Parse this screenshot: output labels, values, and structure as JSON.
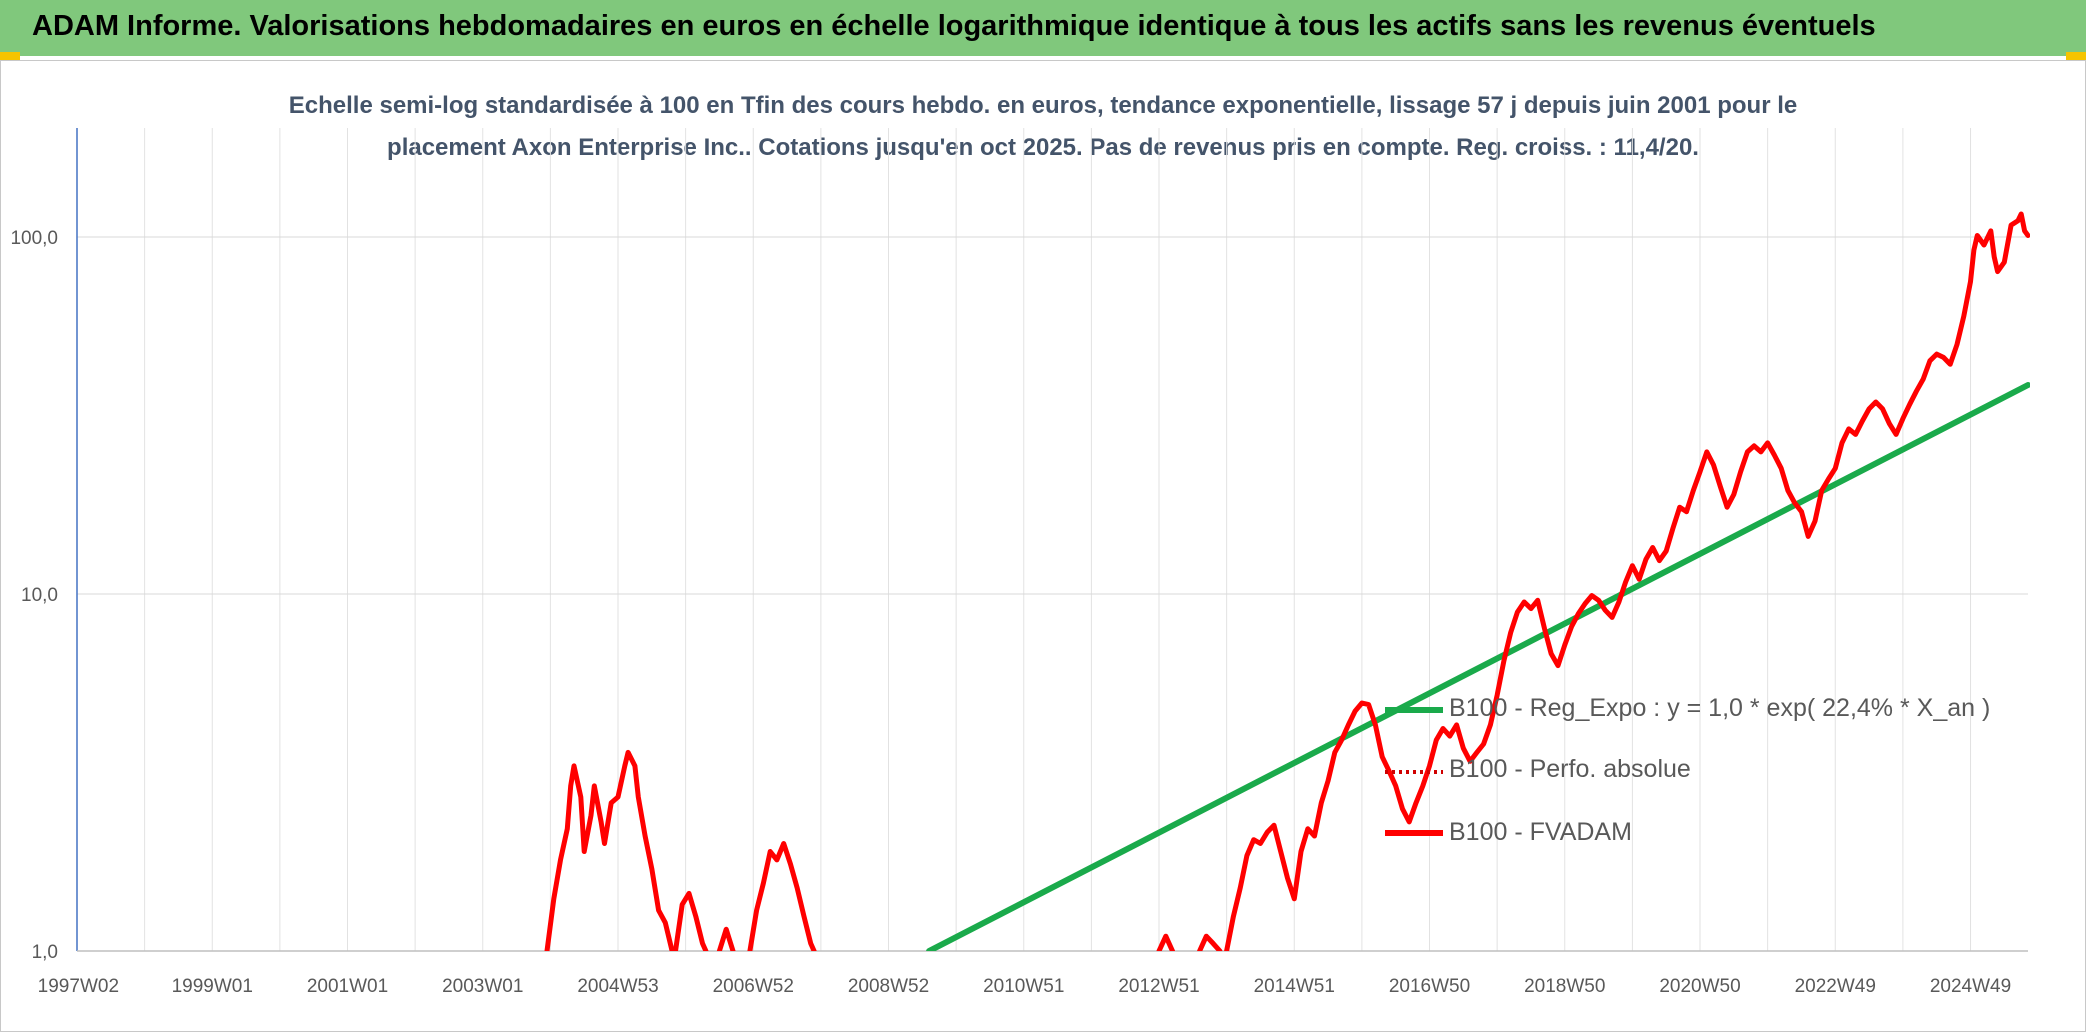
{
  "header": {
    "title": "ADAM Informe. Valorisations hebdomadaires en euros en échelle logarithmique identique à tous les actifs sans les revenus éventuels"
  },
  "chart_data": {
    "type": "line",
    "title_line1": "Echelle semi-log standardisée à 100 en Tfin des cours hebdo. en euros, tendance exponentielle, lissage 57 j depuis juin 2001 pour le",
    "title_line2": "placement Axon Enterprise Inc.. Cotations jusqu'en oct 2025. Pas de revenus pris en compte. Reg. croiss. : 11,4/20.",
    "y_scale": "log",
    "ylim": [
      1,
      180
    ],
    "xlim": [
      1997.0,
      2025.85
    ],
    "y_ticks": [
      {
        "value": 1,
        "label": "1,0"
      },
      {
        "value": 10,
        "label": "10,0"
      },
      {
        "value": 100,
        "label": "100,0"
      }
    ],
    "x_ticks": [
      {
        "value": 1997.02,
        "label": "1997W02"
      },
      {
        "value": 1999.0,
        "label": "1999W01"
      },
      {
        "value": 2001.0,
        "label": "2001W01"
      },
      {
        "value": 2003.0,
        "label": "2003W01"
      },
      {
        "value": 2005.0,
        "label": "2004W53"
      },
      {
        "value": 2007.0,
        "label": "2006W52"
      },
      {
        "value": 2009.0,
        "label": "2008W52"
      },
      {
        "value": 2011.0,
        "label": "2010W51"
      },
      {
        "value": 2013.0,
        "label": "2012W51"
      },
      {
        "value": 2015.0,
        "label": "2014W51"
      },
      {
        "value": 2017.0,
        "label": "2016W50"
      },
      {
        "value": 2019.0,
        "label": "2018W50"
      },
      {
        "value": 2021.0,
        "label": "2020W50"
      },
      {
        "value": 2023.0,
        "label": "2022W49"
      },
      {
        "value": 2025.0,
        "label": "2024W49"
      }
    ],
    "grid": "vertical-yearly-and-horizontal-decades",
    "legend_position": "center-right",
    "series": [
      {
        "name": "B100 - Reg_Expo : y = 1,0 * exp( 22,4% *  X_an )",
        "style": "line",
        "color": "#1aaa4b",
        "points": [
          [
            2009.6,
            1.0
          ],
          [
            2025.85,
            38.5
          ]
        ]
      },
      {
        "name": "B100 - Perfo. absolue",
        "style": "dotted",
        "color": "#d00000",
        "points": []
      },
      {
        "name": "B100 - FVADAM",
        "style": "line",
        "color": "#ff0000",
        "segments": [
          [
            [
              2003.95,
              1.0
            ],
            [
              2004.05,
              1.4
            ],
            [
              2004.15,
              1.8
            ],
            [
              2004.25,
              2.2
            ],
            [
              2004.3,
              2.9
            ],
            [
              2004.35,
              3.3
            ],
            [
              2004.45,
              2.7
            ],
            [
              2004.5,
              1.9
            ],
            [
              2004.6,
              2.4
            ],
            [
              2004.65,
              2.9
            ],
            [
              2004.75,
              2.3
            ],
            [
              2004.8,
              2.0
            ],
            [
              2004.9,
              2.6
            ],
            [
              2005.0,
              2.7
            ],
            [
              2005.1,
              3.3
            ],
            [
              2005.15,
              3.6
            ],
            [
              2005.25,
              3.3
            ],
            [
              2005.3,
              2.7
            ],
            [
              2005.4,
              2.1
            ],
            [
              2005.5,
              1.7
            ],
            [
              2005.6,
              1.3
            ],
            [
              2005.7,
              1.2
            ],
            [
              2005.8,
              1.0
            ]
          ],
          [
            [
              2005.85,
              1.0
            ],
            [
              2005.95,
              1.35
            ],
            [
              2006.05,
              1.45
            ],
            [
              2006.15,
              1.25
            ],
            [
              2006.25,
              1.05
            ],
            [
              2006.3,
              1.0
            ]
          ],
          [
            [
              2006.5,
              1.0
            ],
            [
              2006.6,
              1.15
            ],
            [
              2006.7,
              1.0
            ]
          ],
          [
            [
              2006.95,
              1.0
            ],
            [
              2007.05,
              1.3
            ],
            [
              2007.15,
              1.55
            ],
            [
              2007.25,
              1.9
            ],
            [
              2007.35,
              1.8
            ],
            [
              2007.45,
              2.0
            ],
            [
              2007.55,
              1.75
            ],
            [
              2007.65,
              1.5
            ],
            [
              2007.75,
              1.25
            ],
            [
              2007.85,
              1.05
            ],
            [
              2007.9,
              1.0
            ]
          ],
          [
            [
              2013.0,
              1.0
            ],
            [
              2013.1,
              1.1
            ],
            [
              2013.2,
              1.0
            ]
          ],
          [
            [
              2013.6,
              1.0
            ],
            [
              2013.7,
              1.1
            ],
            [
              2013.8,
              1.05
            ],
            [
              2013.9,
              1.0
            ]
          ],
          [
            [
              2014.0,
              1.0
            ],
            [
              2014.1,
              1.25
            ],
            [
              2014.2,
              1.5
            ],
            [
              2014.3,
              1.85
            ],
            [
              2014.4,
              2.05
            ],
            [
              2014.5,
              2.0
            ],
            [
              2014.6,
              2.15
            ],
            [
              2014.7,
              2.25
            ],
            [
              2014.8,
              1.9
            ],
            [
              2014.9,
              1.6
            ],
            [
              2015.0,
              1.4
            ],
            [
              2015.1,
              1.9
            ],
            [
              2015.2,
              2.2
            ],
            [
              2015.3,
              2.1
            ],
            [
              2015.4,
              2.6
            ],
            [
              2015.5,
              3.0
            ],
            [
              2015.6,
              3.6
            ],
            [
              2015.7,
              3.9
            ],
            [
              2015.8,
              4.3
            ],
            [
              2015.9,
              4.7
            ],
            [
              2016.0,
              4.95
            ],
            [
              2016.1,
              4.9
            ],
            [
              2016.2,
              4.3
            ],
            [
              2016.3,
              3.5
            ],
            [
              2016.4,
              3.2
            ],
            [
              2016.5,
              2.9
            ],
            [
              2016.6,
              2.5
            ],
            [
              2016.7,
              2.3
            ],
            [
              2016.8,
              2.6
            ],
            [
              2016.9,
              2.9
            ],
            [
              2017.0,
              3.3
            ],
            [
              2017.1,
              3.9
            ],
            [
              2017.2,
              4.2
            ],
            [
              2017.3,
              4.0
            ],
            [
              2017.4,
              4.3
            ],
            [
              2017.5,
              3.7
            ],
            [
              2017.6,
              3.4
            ],
            [
              2017.7,
              3.6
            ],
            [
              2017.8,
              3.8
            ],
            [
              2017.9,
              4.3
            ],
            [
              2018.0,
              5.2
            ],
            [
              2018.1,
              6.5
            ],
            [
              2018.2,
              7.8
            ],
            [
              2018.3,
              8.9
            ],
            [
              2018.4,
              9.5
            ],
            [
              2018.5,
              9.1
            ],
            [
              2018.6,
              9.6
            ],
            [
              2018.7,
              8.0
            ],
            [
              2018.8,
              6.8
            ],
            [
              2018.9,
              6.3
            ],
            [
              2019.0,
              7.2
            ],
            [
              2019.1,
              8.1
            ],
            [
              2019.2,
              8.8
            ],
            [
              2019.3,
              9.4
            ],
            [
              2019.4,
              9.9
            ],
            [
              2019.5,
              9.6
            ],
            [
              2019.6,
              9.0
            ],
            [
              2019.7,
              8.6
            ],
            [
              2019.8,
              9.5
            ],
            [
              2019.9,
              10.8
            ],
            [
              2020.0,
              12.0
            ],
            [
              2020.1,
              11.0
            ],
            [
              2020.2,
              12.5
            ],
            [
              2020.3,
              13.5
            ],
            [
              2020.4,
              12.4
            ],
            [
              2020.5,
              13.2
            ],
            [
              2020.6,
              15.3
            ],
            [
              2020.7,
              17.5
            ],
            [
              2020.8,
              17.0
            ],
            [
              2020.9,
              19.5
            ],
            [
              2021.0,
              22.0
            ],
            [
              2021.1,
              25.0
            ],
            [
              2021.2,
              23.0
            ],
            [
              2021.3,
              20.0
            ],
            [
              2021.4,
              17.5
            ],
            [
              2021.5,
              19.0
            ],
            [
              2021.6,
              22.0
            ],
            [
              2021.7,
              25.0
            ],
            [
              2021.8,
              26.0
            ],
            [
              2021.9,
              25.0
            ],
            [
              2022.0,
              26.5
            ],
            [
              2022.1,
              24.5
            ],
            [
              2022.2,
              22.5
            ],
            [
              2022.3,
              19.5
            ],
            [
              2022.4,
              18.0
            ],
            [
              2022.5,
              17.0
            ],
            [
              2022.6,
              14.5
            ],
            [
              2022.7,
              16.0
            ],
            [
              2022.8,
              19.5
            ],
            [
              2022.9,
              21.0
            ],
            [
              2023.0,
              22.5
            ],
            [
              2023.1,
              26.5
            ],
            [
              2023.2,
              29.0
            ],
            [
              2023.3,
              28.0
            ],
            [
              2023.4,
              30.5
            ],
            [
              2023.5,
              33.0
            ],
            [
              2023.6,
              34.5
            ],
            [
              2023.7,
              33.0
            ],
            [
              2023.8,
              30.0
            ],
            [
              2023.9,
              28.0
            ],
            [
              2024.0,
              31.0
            ],
            [
              2024.1,
              34.0
            ],
            [
              2024.2,
              37.0
            ],
            [
              2024.3,
              40.0
            ],
            [
              2024.4,
              45.0
            ],
            [
              2024.5,
              47.0
            ],
            [
              2024.6,
              46.0
            ],
            [
              2024.7,
              44.0
            ],
            [
              2024.8,
              50.0
            ],
            [
              2024.9,
              60.0
            ],
            [
              2025.0,
              75.0
            ],
            [
              2025.05,
              92.0
            ],
            [
              2025.1,
              101.0
            ],
            [
              2025.2,
              95.0
            ],
            [
              2025.3,
              104.0
            ],
            [
              2025.35,
              88.0
            ],
            [
              2025.4,
              80.0
            ],
            [
              2025.5,
              85.0
            ],
            [
              2025.6,
              108.0
            ],
            [
              2025.7,
              111.0
            ],
            [
              2025.75,
              116.0
            ],
            [
              2025.8,
              104.0
            ],
            [
              2025.85,
              101.0
            ]
          ]
        ]
      }
    ]
  }
}
